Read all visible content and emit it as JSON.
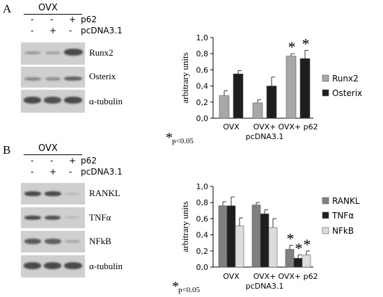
{
  "panels": [
    {
      "letter": "A",
      "group_label": "OVX",
      "conditions": [
        {
          "label": "p62",
          "signs": [
            "-",
            "-",
            "+"
          ]
        },
        {
          "label": "pcDNA3.1",
          "signs": [
            "-",
            "+",
            "-"
          ]
        }
      ],
      "blots": [
        "Runx2",
        "Osterix",
        "α-tubulin"
      ],
      "significance": {
        "star": "*",
        "text": "p<0.05"
      }
    },
    {
      "letter": "B",
      "group_label": "OVX",
      "conditions": [
        {
          "label": "p62",
          "signs": [
            "-",
            "-",
            "+"
          ]
        },
        {
          "label": "pcDNA3.1",
          "signs": [
            "-",
            "+",
            "-"
          ]
        }
      ],
      "blots": [
        "RANKL",
        "TNFα",
        "NFkB",
        "α-tubulin"
      ],
      "significance": {
        "star": "*",
        "text": "p<0.05"
      }
    }
  ],
  "chart_data": [
    {
      "type": "bar",
      "ylabel": "arbitrary units",
      "ylim": [
        0,
        1.0
      ],
      "yticks": [
        "0,0",
        "0,2",
        "0,4",
        "0,6",
        "0,8",
        "1,0"
      ],
      "categories": [
        "OVX",
        "OVX+\npcDNA3.1",
        "OVX+ p62"
      ],
      "series": [
        {
          "name": "Runx2",
          "color": "#a8a8a8",
          "values": [
            0.28,
            0.19,
            0.77
          ],
          "errors": [
            0.06,
            0.04,
            0.03
          ]
        },
        {
          "name": "Osterix",
          "color": "#1e1e1e",
          "values": [
            0.55,
            0.4,
            0.74
          ],
          "errors": [
            0.04,
            0.11,
            0.1
          ]
        }
      ],
      "significance": [
        null,
        null,
        "*"
      ],
      "legend_position": "right"
    },
    {
      "type": "bar",
      "ylabel": "arbitrary units",
      "ylim": [
        0,
        1.0
      ],
      "yticks": [
        "0,0",
        "0,2",
        "0,4",
        "0,6",
        "0,8",
        "1,0"
      ],
      "categories": [
        "OVX",
        "OVX+\npcDNA3.1",
        "OVX+ p62"
      ],
      "series": [
        {
          "name": "RANKL",
          "color": "#808080",
          "values": [
            0.76,
            0.77,
            0.22
          ],
          "errors": [
            0.05,
            0.03,
            0.05
          ]
        },
        {
          "name": "TNFα",
          "color": "#1e1e1e",
          "values": [
            0.76,
            0.66,
            0.11
          ],
          "errors": [
            0.11,
            0.05,
            0.04
          ]
        },
        {
          "name": "NFkB",
          "color": "#dcdcdc",
          "values": [
            0.51,
            0.49,
            0.15
          ],
          "errors": [
            0.1,
            0.11,
            0.05
          ]
        }
      ],
      "significance": [
        null,
        null,
        "*"
      ],
      "legend_position": "right"
    }
  ]
}
